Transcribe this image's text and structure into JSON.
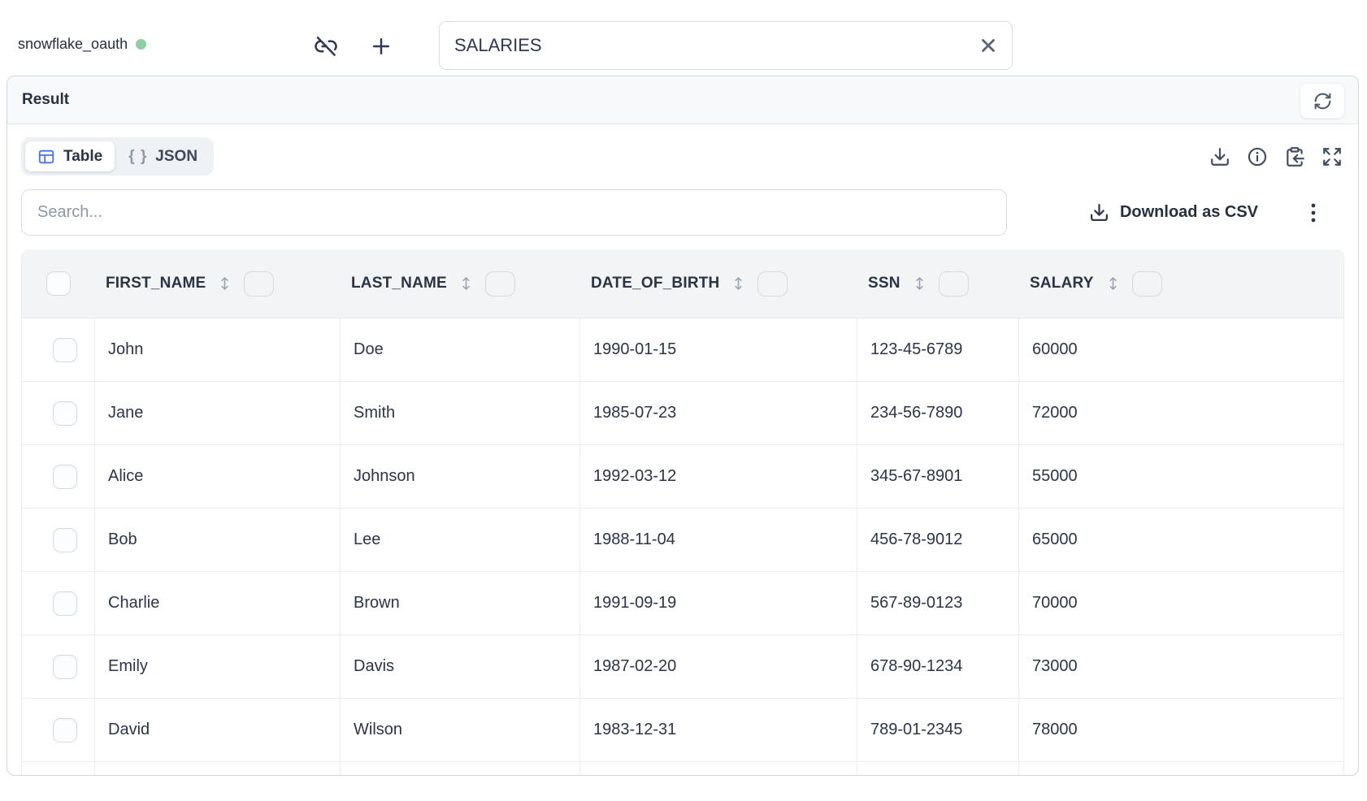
{
  "topbar": {
    "connection_name": "snowflake_oauth",
    "table_name_value": "SALARIES"
  },
  "result_panel": {
    "title": "Result"
  },
  "view_switcher": {
    "tabs": [
      {
        "label": "Table",
        "active": true
      },
      {
        "label": "JSON",
        "active": false
      }
    ],
    "json_glyph": "{ }"
  },
  "search": {
    "placeholder": "Search..."
  },
  "toolbar": {
    "download_csv_label": "Download as CSV"
  },
  "table": {
    "columns": [
      "FIRST_NAME",
      "LAST_NAME",
      "DATE_OF_BIRTH",
      "SSN",
      "SALARY"
    ],
    "rows": [
      [
        "John",
        "Doe",
        "1990-01-15",
        "123-45-6789",
        "60000"
      ],
      [
        "Jane",
        "Smith",
        "1985-07-23",
        "234-56-7890",
        "72000"
      ],
      [
        "Alice",
        "Johnson",
        "1992-03-12",
        "345-67-8901",
        "55000"
      ],
      [
        "Bob",
        "Lee",
        "1988-11-04",
        "456-78-9012",
        "65000"
      ],
      [
        "Charlie",
        "Brown",
        "1991-09-19",
        "567-89-0123",
        "70000"
      ],
      [
        "Emily",
        "Davis",
        "1987-02-20",
        "678-90-1234",
        "73000"
      ],
      [
        "David",
        "Wilson",
        "1983-12-31",
        "789-01-2345",
        "78000"
      ]
    ]
  },
  "icons": {
    "connection-status-dot": "●",
    "unlink-icon": "link-off",
    "add-icon": "+",
    "clear-icon": "✕",
    "refresh-icon": "⟳",
    "table-view-icon": "table-grid",
    "json-braces-icon": "{ }",
    "download-icon": "⭳",
    "info-icon": "ⓘ",
    "clipboard-paste-icon": "clipboard-arrow",
    "expand-icon": "⛶",
    "sort-icon": "↕",
    "kebab-icon": "⋮",
    "checkbox": "☐"
  },
  "colors": {
    "accent_blue": "#4671f0",
    "status_green": "#8ecfa1"
  }
}
